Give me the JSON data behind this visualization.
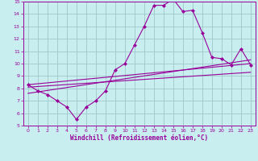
{
  "xlabel": "Windchill (Refroidissement éolien,°C)",
  "background_color": "#c8eef0",
  "grid_color": "#a0c8cc",
  "line_color": "#990099",
  "xlim": [
    -0.5,
    23.5
  ],
  "ylim": [
    5,
    15
  ],
  "xticks": [
    0,
    1,
    2,
    3,
    4,
    5,
    6,
    7,
    8,
    9,
    10,
    11,
    12,
    13,
    14,
    15,
    16,
    17,
    18,
    19,
    20,
    21,
    22,
    23
  ],
  "yticks": [
    5,
    6,
    7,
    8,
    9,
    10,
    11,
    12,
    13,
    14,
    15
  ],
  "main_x": [
    0,
    1,
    2,
    3,
    4,
    5,
    6,
    7,
    8,
    9,
    10,
    11,
    12,
    13,
    14,
    15,
    16,
    17,
    18,
    19,
    20,
    21,
    22,
    23
  ],
  "main_y": [
    8.3,
    7.8,
    7.5,
    7.0,
    6.5,
    5.5,
    6.5,
    7.0,
    7.8,
    9.5,
    10.0,
    11.5,
    13.0,
    14.7,
    14.7,
    15.2,
    14.2,
    14.3,
    12.5,
    10.5,
    10.4,
    9.9,
    11.2,
    9.9
  ],
  "line1_x": [
    0,
    23
  ],
  "line1_y": [
    8.1,
    9.3
  ],
  "line2_x": [
    0,
    23
  ],
  "line2_y": [
    8.3,
    10.0
  ],
  "line3_x": [
    0,
    23
  ],
  "line3_y": [
    7.6,
    10.3
  ]
}
